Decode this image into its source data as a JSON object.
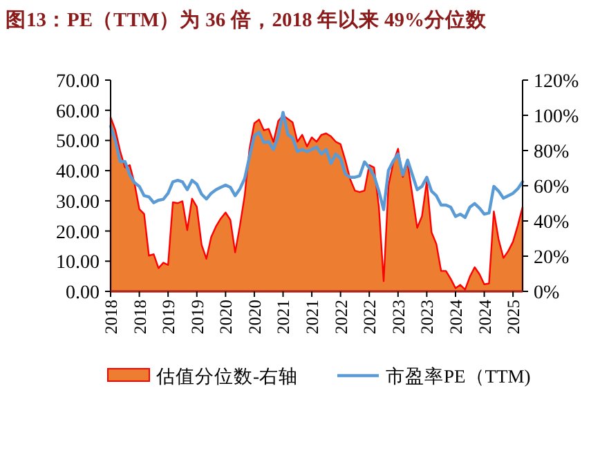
{
  "chart_data": {
    "type": "line",
    "title": "图13：PE（TTM）为 36 倍，2018 年以来 49%分位数",
    "categories": [
      "2018",
      null,
      null,
      null,
      null,
      null,
      "2018",
      null,
      null,
      null,
      null,
      null,
      "2019",
      null,
      null,
      null,
      null,
      null,
      "2019",
      null,
      null,
      null,
      null,
      null,
      "2020",
      null,
      null,
      null,
      null,
      null,
      "2020",
      null,
      null,
      null,
      null,
      null,
      "2021",
      null,
      null,
      null,
      null,
      null,
      "2021",
      null,
      null,
      null,
      null,
      null,
      "2022",
      null,
      null,
      null,
      null,
      null,
      "2022",
      null,
      null,
      null,
      null,
      null,
      "2023",
      null,
      null,
      null,
      null,
      null,
      "2023",
      null,
      null,
      null,
      null,
      null,
      "2024",
      null,
      null,
      null,
      null,
      null,
      "2024",
      null,
      null,
      null,
      null,
      null,
      "2025",
      null,
      null
    ],
    "series": [
      {
        "name": "估值分位数-右轴",
        "type": "area",
        "axis": "y2",
        "color": "#ed7d31",
        "values": [
          99,
          91.5,
          79.6,
          70.4,
          71.7,
          61.2,
          46.7,
          44,
          20.3,
          21.1,
          13.2,
          16.3,
          15,
          50.6,
          50.1,
          51.2,
          34.8,
          52.7,
          48,
          26.4,
          18.5,
          30.9,
          36.9,
          41.4,
          44.8,
          40.6,
          22.1,
          37.4,
          54.6,
          81,
          95.5,
          97.6,
          91.5,
          92.3,
          84.9,
          96.8,
          100,
          98,
          96,
          85,
          88.9,
          82.3,
          87.5,
          85,
          88.9,
          89.7,
          88,
          85,
          83.6,
          74.4,
          63.8,
          57.2,
          56.4,
          57.2,
          71.7,
          70.4,
          48,
          5.8,
          59.9,
          73,
          81,
          65,
          73,
          54.6,
          36.1,
          42.7,
          62.5,
          33.5,
          26.9,
          11.6,
          11.6,
          7.1,
          1.8,
          3.7,
          1,
          8.4,
          13.7,
          9.8,
          4,
          4.5,
          45.4,
          29.5,
          19,
          22.9,
          28.2,
          37.4,
          48
        ]
      },
      {
        "name": "市盈率PE（TTM)",
        "type": "line",
        "color": "#5b9bd5",
        "values": [
          54.7,
          50,
          43,
          43,
          38.6,
          36,
          34.8,
          31.7,
          31.3,
          29.4,
          30.2,
          30.5,
          32.5,
          36.3,
          36.8,
          36.3,
          33.7,
          36.8,
          35.5,
          32.2,
          30.6,
          32.5,
          33.7,
          34.5,
          35.2,
          34.5,
          31.7,
          34,
          37.4,
          44.7,
          51.6,
          52.7,
          49.3,
          49.6,
          47,
          51.6,
          59.3,
          52,
          50.8,
          46.3,
          47,
          46.3,
          47,
          47.8,
          45.5,
          47,
          42.4,
          45.5,
          44,
          38.9,
          37.8,
          37.8,
          38.3,
          42.9,
          40.9,
          38.3,
          33.2,
          27.1,
          40.1,
          43.2,
          45.5,
          38.6,
          43.5,
          38.6,
          33.7,
          34.8,
          37.8,
          33.2,
          31.7,
          28.6,
          28.6,
          27.9,
          24.8,
          25.6,
          24.5,
          27.9,
          29.1,
          27.6,
          25.6,
          26,
          34.8,
          33.2,
          30.9,
          31.7,
          32.5,
          34,
          36.3
        ]
      }
    ],
    "ylim": [
      0,
      70
    ],
    "yticks": [
      {
        "value": 0,
        "label": "0.00"
      },
      {
        "value": 10,
        "label": "10.00"
      },
      {
        "value": 20,
        "label": "20.00"
      },
      {
        "value": 30,
        "label": "30.00"
      },
      {
        "value": 40,
        "label": "40.00"
      },
      {
        "value": 50,
        "label": "50.00"
      },
      {
        "value": 60,
        "label": "60.00"
      },
      {
        "value": 70,
        "label": "70.00"
      }
    ],
    "y2lim": [
      0,
      120
    ],
    "y2ticks": [
      {
        "value": 0,
        "label": "0%"
      },
      {
        "value": 20,
        "label": "20%"
      },
      {
        "value": 40,
        "label": "40%"
      },
      {
        "value": 60,
        "label": "60%"
      },
      {
        "value": 80,
        "label": "80%"
      },
      {
        "value": 100,
        "label": "100%"
      },
      {
        "value": 120,
        "label": "120%"
      }
    ],
    "grid": false,
    "legend": "bottom",
    "marker": "none",
    "line_style": "solid"
  }
}
